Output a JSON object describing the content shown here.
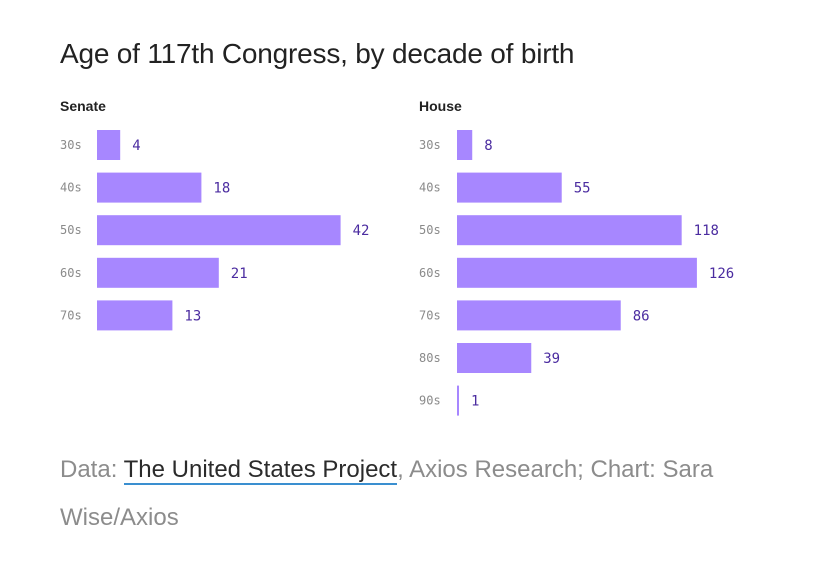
{
  "title": "Age of 117th Congress, by decade of birth",
  "source": {
    "prefix": "Data: ",
    "link_text": "The United States Project",
    "suffix": ", Axios Research; Chart: Sara Wise/Axios"
  },
  "colors": {
    "bar": "#a787ff",
    "value_label": "#4b2ca0",
    "tick_label": "#8a8a8a"
  },
  "chart_data": [
    {
      "type": "bar",
      "orientation": "horizontal",
      "title": "Senate",
      "categories": [
        "30s",
        "40s",
        "50s",
        "60s",
        "70s"
      ],
      "values": [
        4,
        18,
        42,
        21,
        13
      ]
    },
    {
      "type": "bar",
      "orientation": "horizontal",
      "title": "House",
      "categories": [
        "30s",
        "40s",
        "50s",
        "60s",
        "70s",
        "80s",
        "90s"
      ],
      "values": [
        8,
        55,
        118,
        126,
        86,
        39,
        1
      ]
    }
  ]
}
